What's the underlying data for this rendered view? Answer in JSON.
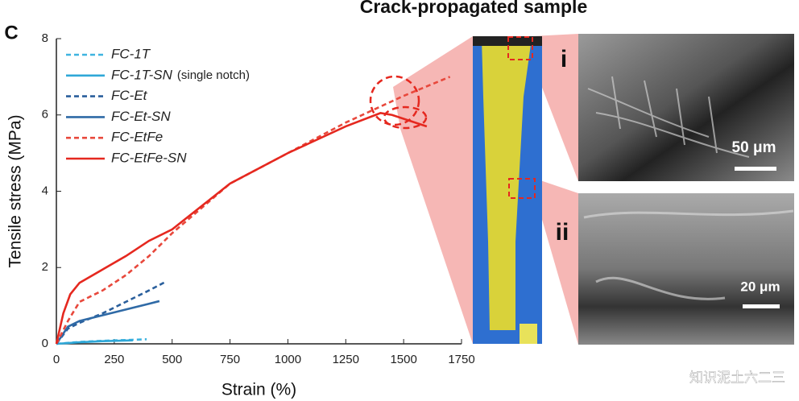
{
  "panel_label": "C",
  "image_title": "Crack-propagated sample",
  "insets": [
    {
      "label": "i",
      "scale_bar": "50 μm"
    },
    {
      "label": "ii",
      "scale_bar": "20 μm"
    }
  ],
  "watermark": "知识泥土六二三",
  "chart_data": {
    "type": "line",
    "xlabel": "Strain (%)",
    "ylabel": "Tensile stress (MPa)",
    "xlim": [
      0,
      1750
    ],
    "xticks": [
      0,
      250,
      500,
      750,
      1000,
      1250,
      1500,
      1750
    ],
    "ylim": [
      0,
      8
    ],
    "yticks": [
      0,
      2,
      4,
      6,
      8
    ],
    "legend": "upper left",
    "legend_note": "(single notch)",
    "series": [
      {
        "name": "FC-1T",
        "color": "#3fb4e0",
        "style": "dashed",
        "x": [
          0,
          100,
          200,
          300,
          390
        ],
        "values": [
          0,
          0.05,
          0.08,
          0.1,
          0.12
        ]
      },
      {
        "name": "FC-1T-SN",
        "color": "#2fa8d8",
        "style": "solid",
        "x": [
          0,
          100,
          200,
          330
        ],
        "values": [
          0,
          0.04,
          0.07,
          0.09
        ]
      },
      {
        "name": "FC-Et",
        "color": "#2a5f9c",
        "style": "dashed",
        "x": [
          0,
          50,
          100,
          200,
          300,
          400,
          470
        ],
        "values": [
          0,
          0.4,
          0.55,
          0.8,
          1.1,
          1.4,
          1.62
        ]
      },
      {
        "name": "FC-Et-SN",
        "color": "#2f6aa6",
        "style": "solid",
        "x": [
          0,
          50,
          100,
          200,
          300,
          400,
          445
        ],
        "values": [
          0,
          0.45,
          0.6,
          0.75,
          0.9,
          1.05,
          1.12
        ]
      },
      {
        "name": "FC-EtFe",
        "color": "#e8483c",
        "style": "dashed",
        "x": [
          0,
          50,
          100,
          200,
          300,
          400,
          500,
          750,
          1000,
          1250,
          1500,
          1700
        ],
        "values": [
          0,
          0.6,
          1.1,
          1.4,
          1.8,
          2.3,
          2.9,
          4.2,
          5.0,
          5.8,
          6.5,
          7.0
        ]
      },
      {
        "name": "FC-EtFe-SN",
        "color": "#e5281f",
        "style": "solid",
        "x": [
          0,
          30,
          60,
          100,
          200,
          300,
          400,
          500,
          750,
          1000,
          1250,
          1400,
          1450,
          1550,
          1600
        ],
        "values": [
          0,
          0.8,
          1.3,
          1.6,
          1.95,
          2.3,
          2.7,
          3.0,
          4.2,
          5.0,
          5.7,
          6.05,
          6.0,
          5.8,
          5.7
        ]
      }
    ]
  }
}
